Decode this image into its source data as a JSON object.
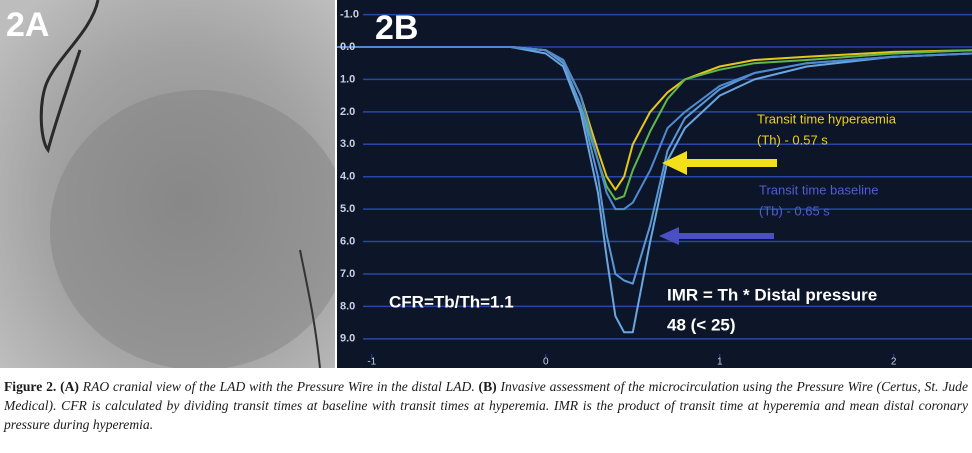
{
  "panel_a": {
    "label": "2A"
  },
  "chart_data": {
    "type": "line",
    "panel_label": "2B",
    "x": [
      -1.2,
      -0.2,
      0,
      0.1,
      0.2,
      0.3,
      0.35,
      0.4,
      0.45,
      0.5,
      0.6,
      0.7,
      0.8,
      1.0,
      1.2,
      1.5,
      2.0,
      2.45
    ],
    "series": [
      {
        "color": "#e6c619",
        "values": [
          0,
          0,
          0.1,
          0.4,
          1.5,
          3.2,
          4.0,
          4.4,
          4.0,
          3.0,
          2.0,
          1.4,
          1.0,
          0.6,
          0.4,
          0.3,
          0.15,
          0.1
        ]
      },
      {
        "color": "#5fb84a",
        "values": [
          0,
          0,
          0.1,
          0.5,
          1.8,
          3.5,
          4.3,
          4.7,
          4.6,
          3.8,
          2.6,
          1.6,
          1.0,
          0.7,
          0.5,
          0.4,
          0.2,
          0.1
        ]
      },
      {
        "color": "#6aa6e0",
        "values": [
          0,
          0,
          0.2,
          0.6,
          2.0,
          4.5,
          6.5,
          8.3,
          8.8,
          8.8,
          6.0,
          3.5,
          2.5,
          1.5,
          1.0,
          0.6,
          0.3,
          0.2
        ]
      },
      {
        "color": "#5b96d8",
        "values": [
          0,
          0,
          0.1,
          0.5,
          1.8,
          4.0,
          5.8,
          7.0,
          7.2,
          7.3,
          5.5,
          3.2,
          2.2,
          1.3,
          0.8,
          0.5,
          0.3,
          0.2
        ]
      },
      {
        "color": "#4f8ad0",
        "values": [
          0,
          0,
          0.1,
          0.4,
          1.5,
          3.5,
          4.5,
          5.0,
          5.0,
          4.8,
          3.8,
          2.5,
          2.0,
          1.2,
          0.8,
          0.5,
          0.3,
          0.2
        ]
      }
    ],
    "xlim": [
      -1.2,
      2.45
    ],
    "xticks": [
      -1,
      0,
      1,
      2
    ],
    "ylim": [
      -1.45,
      9.9
    ],
    "y_inverted": true,
    "yticks": [
      {
        "value": -1,
        "label": "-1.0"
      },
      {
        "value": 0,
        "label": "0.0"
      },
      {
        "value": 1,
        "label": "1.0"
      },
      {
        "value": 2,
        "label": "2.0"
      },
      {
        "value": 3,
        "label": "3.0"
      },
      {
        "value": 4,
        "label": "4.0"
      },
      {
        "value": 5,
        "label": "5.0"
      },
      {
        "value": 6,
        "label": "6.0"
      },
      {
        "value": 7,
        "label": "7.0"
      },
      {
        "value": 8,
        "label": "8.0"
      },
      {
        "value": 9,
        "label": "9.0"
      }
    ],
    "grid": true,
    "annotations": [
      "Transit time hyperaemia",
      "(Th) - 0.57 s",
      "Transit time baseline",
      "(Tb) - 0.65 s",
      "CFR=Tb/Th=1.1",
      "IMR = Th * Distal pressure",
      "48 (< 25)"
    ]
  },
  "caption": {
    "label": "Figure 2.",
    "a_label": "(A)",
    "a_text": "RAO cranial view of the LAD with the Pressure Wire in the distal LAD.",
    "b_label": "(B)",
    "b_text": "Invasive assessment of the microcirculation using the Pressure Wire (Certus, St. Jude Medical). CFR is calculated by dividing transit times at baseline with transit times at hyperemia. IMR is the product of transit time at hyperemia and mean distal coronary pressure during hyperemia."
  }
}
